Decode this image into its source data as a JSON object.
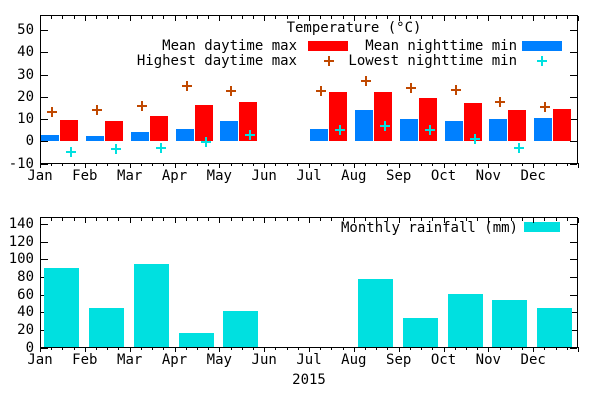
{
  "chart_data": [
    {
      "type": "bar",
      "title": "Temperature (°C)",
      "categories": [
        "Jan",
        "Feb",
        "Mar",
        "Apr",
        "May",
        "Jun",
        "Jul",
        "Aug",
        "Sep",
        "Oct",
        "Nov",
        "Dec"
      ],
      "series": [
        {
          "name": "Mean daytime max",
          "style": "bar",
          "color": "#ff0000",
          "values": [
            9.5,
            9,
            11.5,
            16.5,
            17.5,
            null,
            22,
            22,
            19.5,
            17,
            14,
            14.5
          ]
        },
        {
          "name": "Mean nighttime min",
          "style": "bar",
          "color": "#0080ff",
          "values": [
            3,
            2.5,
            4,
            5.5,
            9,
            null,
            5.5,
            14,
            10,
            9,
            10,
            10.5
          ]
        },
        {
          "name": "Highest daytime max",
          "style": "plus",
          "color": "#c04800",
          "values": [
            13,
            14,
            16,
            25,
            22.5,
            null,
            22.5,
            27,
            24,
            23,
            17.5,
            15.5
          ]
        },
        {
          "name": "Lowest nighttime min",
          "style": "plus",
          "color": "#00e0e0",
          "values": [
            -5,
            -3.5,
            -3,
            -0.5,
            3,
            null,
            5,
            7,
            5,
            1,
            -3,
            null
          ]
        }
      ],
      "ylim": [
        -10,
        50
      ],
      "ytick_step": 10,
      "yticks": [
        -10,
        0,
        10,
        20,
        30,
        40,
        50
      ],
      "grid": false,
      "legend_position": "top-inside"
    },
    {
      "type": "bar",
      "title": "",
      "legend": "Monthly rainfall (mm)",
      "categories": [
        "Jan",
        "Feb",
        "Mar",
        "Apr",
        "May",
        "Jun",
        "Jul",
        "Aug",
        "Sep",
        "Oct",
        "Nov",
        "Dec"
      ],
      "values": [
        90,
        45,
        95,
        16,
        41,
        null,
        null,
        78,
        34,
        61,
        54,
        45
      ],
      "color": "#00e0e0",
      "ylim": [
        0,
        140
      ],
      "ytick_step": 20,
      "yticks": [
        0,
        20,
        40,
        60,
        80,
        100,
        120,
        140
      ],
      "xlabel": "2015",
      "grid": false,
      "legend_position": "top-right-inside"
    }
  ]
}
